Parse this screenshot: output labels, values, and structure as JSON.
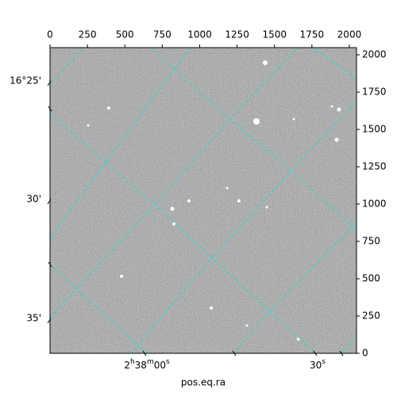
{
  "chart_data": {
    "type": "image",
    "xlabel": "pos.eq.ra",
    "xlim": [
      0,
      2048
    ],
    "ylim": [
      0,
      2048
    ],
    "xticks": [
      0,
      250,
      500,
      750,
      1000,
      1250,
      1500,
      1750,
      2000
    ],
    "yticks": [
      0,
      250,
      500,
      750,
      1000,
      1250,
      1500,
      1750,
      2000
    ],
    "ra_ticks": [
      "2h38m00s",
      "30s"
    ],
    "dec_ticks": [
      "16°25'",
      "30'",
      "35'"
    ]
  }
}
